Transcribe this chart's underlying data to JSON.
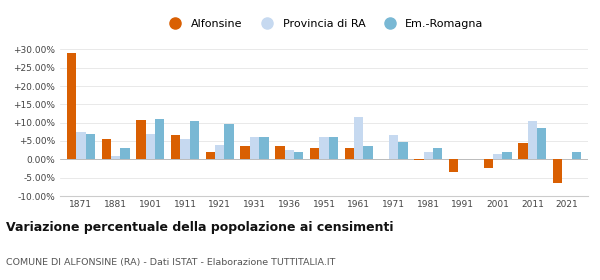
{
  "years": [
    1871,
    1881,
    1901,
    1911,
    1921,
    1931,
    1936,
    1951,
    1961,
    1971,
    1981,
    1991,
    2001,
    2011,
    2021
  ],
  "alfonsine": [
    29.0,
    5.5,
    10.8,
    6.5,
    2.0,
    3.5,
    3.5,
    3.2,
    3.0,
    0.2,
    -0.2,
    -3.5,
    -2.5,
    4.5,
    -6.5
  ],
  "provincia_ra": [
    7.5,
    1.0,
    7.0,
    5.5,
    4.0,
    6.0,
    2.5,
    6.0,
    11.5,
    6.5,
    2.0,
    0.0,
    1.5,
    10.5,
    0.0
  ],
  "em_romagna": [
    7.0,
    3.0,
    11.0,
    10.5,
    9.5,
    6.0,
    2.0,
    6.0,
    3.5,
    4.8,
    3.0,
    0.0,
    2.0,
    8.5,
    2.0
  ],
  "color_alfonsine": "#d95f02",
  "color_provincia": "#c6d9f0",
  "color_em": "#79b8d4",
  "ylim": [
    -10,
    32
  ],
  "yticks": [
    -10,
    -5,
    0,
    5,
    10,
    15,
    20,
    25,
    30
  ],
  "title": "Variazione percentuale della popolazione ai censimenti",
  "subtitle": "COMUNE DI ALFONSINE (RA) - Dati ISTAT - Elaborazione TUTTITALIA.IT",
  "legend_labels": [
    "Alfonsine",
    "Provincia di RA",
    "Em.-Romagna"
  ],
  "background_color": "#ffffff",
  "grid_color": "#e0e0e0"
}
